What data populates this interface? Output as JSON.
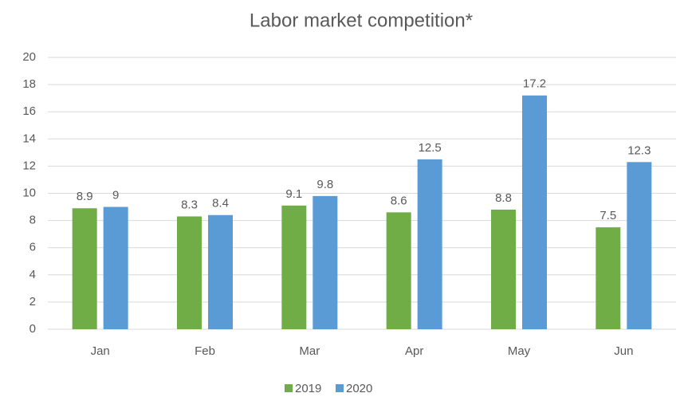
{
  "chart_data": {
    "type": "bar",
    "title": "Labor market competition*",
    "categories": [
      "Jan",
      "Feb",
      "Mar",
      "Apr",
      "May",
      "Jun"
    ],
    "series": [
      {
        "name": "2019",
        "color": "#70ad47",
        "values": [
          8.9,
          8.3,
          9.1,
          8.6,
          8.8,
          7.5
        ]
      },
      {
        "name": "2020",
        "color": "#5b9bd5",
        "values": [
          9,
          8.4,
          9.8,
          12.5,
          17.2,
          12.3
        ]
      }
    ],
    "ylim": [
      0,
      20
    ],
    "yticks": [
      0,
      2,
      4,
      6,
      8,
      10,
      12,
      14,
      16,
      18,
      20
    ],
    "grid": true,
    "legend": "bottom"
  }
}
